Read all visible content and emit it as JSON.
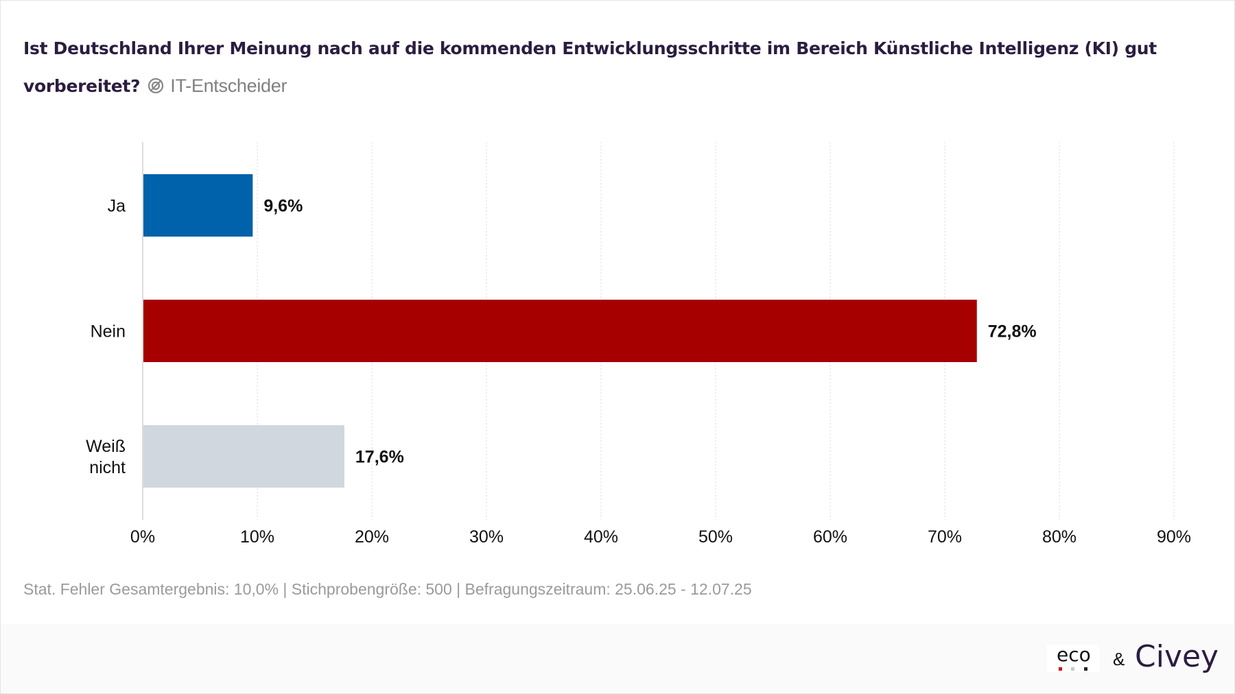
{
  "title": "Ist Deutschland Ihrer Meinung nach auf die kommenden Entwicklungsschritte im Bereich Künstliche Intelligenz (KI) gut vorbereitet?",
  "subtitle": "IT-Entscheider",
  "subtitle_icon": "segment-icon",
  "footnote": "Stat. Fehler Gesamtergebnis: 10,0% | Stichprobengröße: 500 | Befragungszeitraum: 25.06.25 - 12.07.25",
  "logos": {
    "eco": "eco",
    "amp": "&",
    "civey": "Civey"
  },
  "chart_data": {
    "type": "bar",
    "orientation": "horizontal",
    "categories": [
      "Ja",
      "Nein",
      "Weiß nicht"
    ],
    "category_lines": [
      [
        "Ja"
      ],
      [
        "Nein"
      ],
      [
        "Weiß",
        "nicht"
      ]
    ],
    "values": [
      9.6,
      72.8,
      17.6
    ],
    "value_labels": [
      "9,6%",
      "72,8%",
      "17,6%"
    ],
    "colors": [
      "#0062ab",
      "#a60000",
      "#d0d7df"
    ],
    "xlim": [
      0,
      90
    ],
    "xticks": [
      0,
      10,
      20,
      30,
      40,
      50,
      60,
      70,
      80,
      90
    ],
    "xtick_labels": [
      "0%",
      "10%",
      "20%",
      "30%",
      "40%",
      "50%",
      "60%",
      "70%",
      "80%",
      "90%"
    ],
    "grid": true,
    "xlabel": "",
    "ylabel": ""
  }
}
